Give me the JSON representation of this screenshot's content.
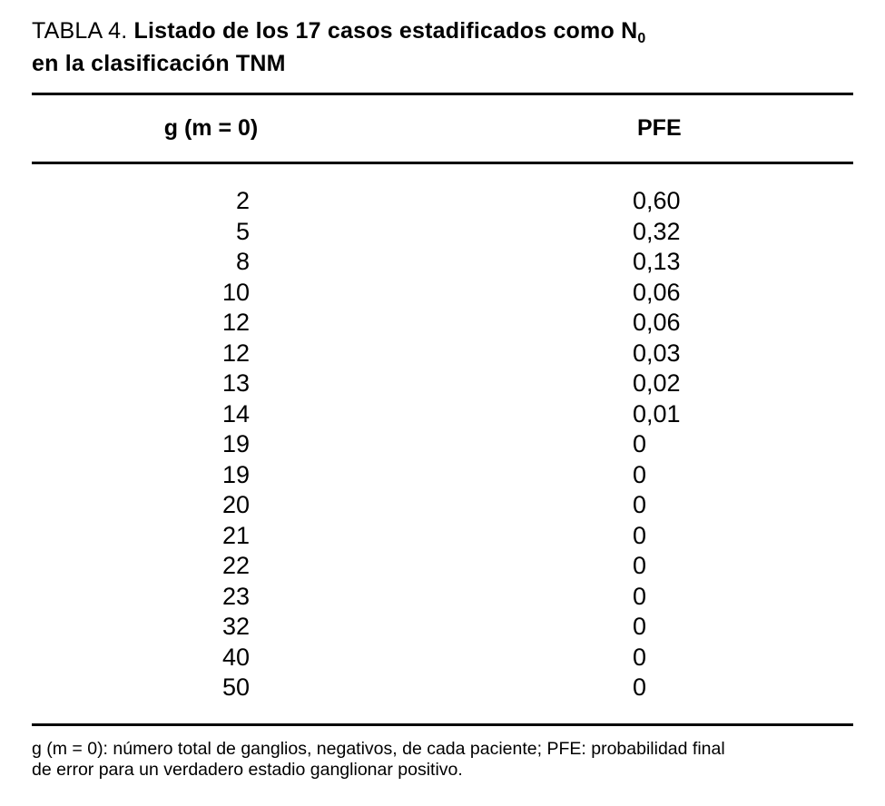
{
  "title": {
    "label": "TABLA 4. ",
    "bold_text": "Listado de los 17 casos estadificados como N",
    "subscript": "0",
    "line2": "en la clasificación TNM"
  },
  "columns": {
    "g": "g (m = 0)",
    "pfe": "PFE"
  },
  "rows": [
    {
      "g": "2",
      "pfe": "0,60"
    },
    {
      "g": "5",
      "pfe": "0,32"
    },
    {
      "g": "8",
      "pfe": "0,13"
    },
    {
      "g": "10",
      "pfe": "0,06"
    },
    {
      "g": "12",
      "pfe": "0,06"
    },
    {
      "g": "12",
      "pfe": "0,03"
    },
    {
      "g": "13",
      "pfe": "0,02"
    },
    {
      "g": "14",
      "pfe": "0,01"
    },
    {
      "g": "19",
      "pfe": "0"
    },
    {
      "g": "19",
      "pfe": "0"
    },
    {
      "g": "20",
      "pfe": "0"
    },
    {
      "g": "21",
      "pfe": "0"
    },
    {
      "g": "22",
      "pfe": "0"
    },
    {
      "g": "23",
      "pfe": "0"
    },
    {
      "g": "32",
      "pfe": "0"
    },
    {
      "g": "40",
      "pfe": "0"
    },
    {
      "g": "50",
      "pfe": "0"
    }
  ],
  "footnote": {
    "line1": "g (m = 0): número total de ganglios, negativos, de cada paciente; PFE: probabilidad final",
    "line2": "de error para un verdadero estadio ganglionar positivo."
  }
}
